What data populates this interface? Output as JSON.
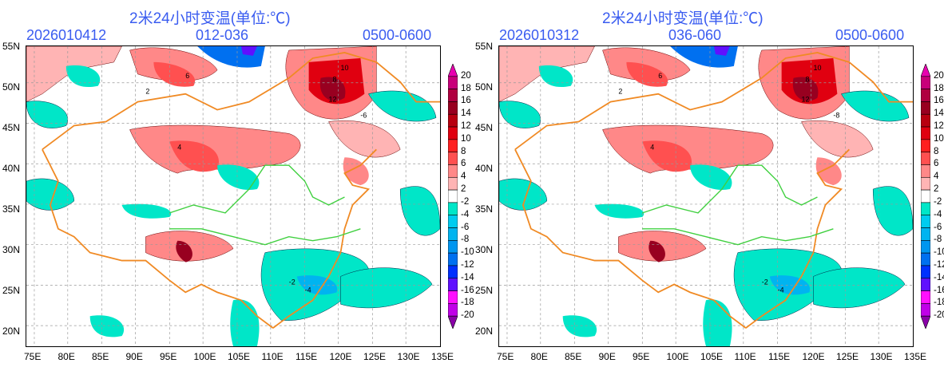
{
  "panels": [
    {
      "title": "2米24小时变温(单位:℃)",
      "init": "2026010412",
      "range": "012-036",
      "period": "0500-0600",
      "contour_labels": [
        "2",
        "4",
        "6",
        "8",
        "10",
        "12",
        "-2",
        "-4",
        "-6"
      ]
    },
    {
      "title": "2米24小时变温(单位:℃)",
      "init": "2026010312",
      "range": "036-060",
      "period": "0500-0600",
      "contour_labels": [
        "2",
        "4",
        "6",
        "8",
        "10",
        "12",
        "-2",
        "-4",
        "-8"
      ]
    }
  ],
  "lat_ticks": [
    "20N",
    "25N",
    "30N",
    "35N",
    "40N",
    "45N",
    "50N",
    "55N"
  ],
  "lon_ticks": [
    "75E",
    "80E",
    "85E",
    "90E",
    "95E",
    "100E",
    "105E",
    "110E",
    "115E",
    "120E",
    "125E",
    "130E",
    "135E"
  ],
  "colorbar": {
    "labels": [
      "20",
      "18",
      "16",
      "14",
      "12",
      "10",
      "8",
      "6",
      "4",
      "2",
      "-2",
      "-4",
      "-6",
      "-8",
      "-10",
      "-12",
      "-14",
      "-16",
      "-18",
      "-20"
    ],
    "colors": [
      "#e800b0",
      "#c8007a",
      "#b00040",
      "#980020",
      "#b80010",
      "#e00010",
      "#ff2020",
      "#ff5050",
      "#ff8888",
      "#ffb4b4",
      "#ffffff",
      "#00e6c8",
      "#00ccf0",
      "#00b4f0",
      "#0096f0",
      "#0070f0",
      "#0030ff",
      "#6010ff",
      "#ff10ff",
      "#c000e8",
      "#8a00a8"
    ]
  }
}
